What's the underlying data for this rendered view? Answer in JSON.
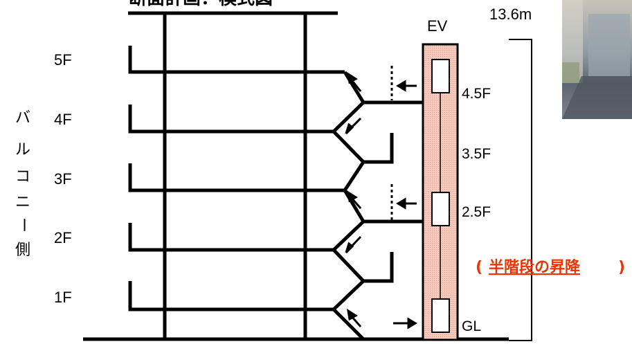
{
  "title_fragment": "断面計画：模式図",
  "side_label": [
    "バ",
    "ル",
    "コ",
    "ニ",
    "ー",
    "側"
  ],
  "floors": [
    "5F",
    "4F",
    "3F",
    "2F",
    "1F"
  ],
  "elevator": {
    "label": "EV",
    "height_label": "13.6m",
    "stops": [
      "4.5F",
      "3.5F",
      "2.5F",
      "GL"
    ]
  },
  "note": {
    "open": "(",
    "text": "半階段の昇降",
    "close": ")",
    "color": "#ee3300"
  },
  "colors": {
    "shaft_fill": "#f3b6a6",
    "line": "#000000"
  }
}
